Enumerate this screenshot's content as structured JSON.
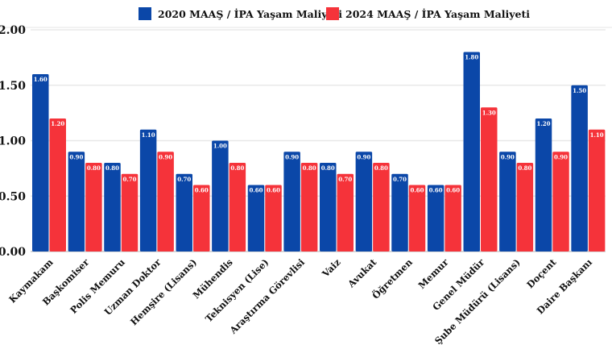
{
  "chart_data": {
    "type": "bar",
    "title": "",
    "xlabel": "",
    "ylabel": "",
    "ylim": [
      0,
      2.0
    ],
    "yticks": [
      "0.00",
      "0.50",
      "1.00",
      "1.50",
      "2.00"
    ],
    "grid": true,
    "legend_position": "top",
    "categories": [
      "Kaymakam",
      "Başkomiser",
      "Polis Memuru",
      "Uzman Doktor",
      "Hemşire (Lisans)",
      "Mühendis",
      "Teknisyen (Lise)",
      "Araştırma Görevlisi",
      "Vaiz",
      "Avukat",
      "Öğretmen",
      "Memur",
      "Genel Müdür",
      "Şube Müdürü (Lisans)",
      "Doçent",
      "Daire Başkanı"
    ],
    "series": [
      {
        "name": "2020 MAAŞ / İPA Yaşam Maliyeti",
        "color": "#0b47a8",
        "values": [
          1.6,
          0.9,
          0.8,
          1.1,
          0.7,
          1.0,
          0.6,
          0.9,
          0.8,
          0.9,
          0.7,
          0.6,
          1.8,
          0.9,
          1.2,
          1.5
        ]
      },
      {
        "name": "2024 MAAŞ / İPA Yaşam Maliyeti",
        "color": "#f5333a",
        "values": [
          1.2,
          0.8,
          0.7,
          0.9,
          0.6,
          0.8,
          0.6,
          0.8,
          0.7,
          0.8,
          0.6,
          0.6,
          1.3,
          0.8,
          0.9,
          1.1
        ]
      }
    ]
  }
}
